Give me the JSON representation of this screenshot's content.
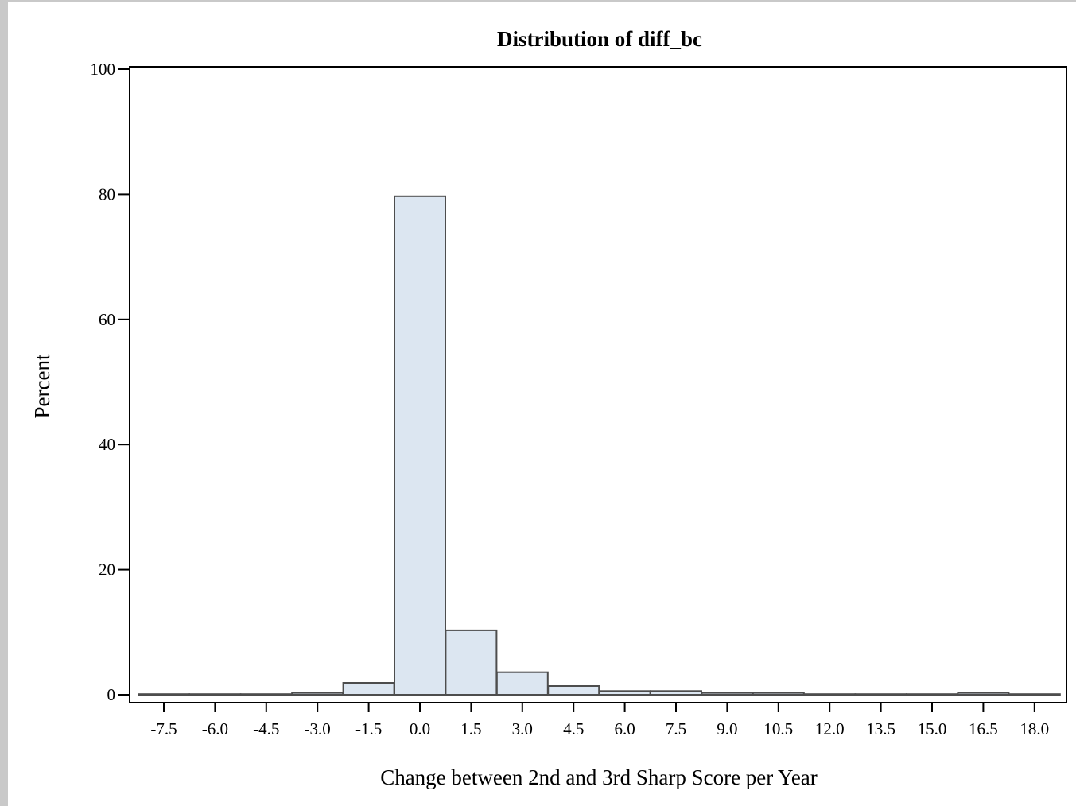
{
  "chart_data": {
    "type": "bar",
    "title": "Distribution of diff_bc",
    "xlabel": "Change between 2nd and 3rd Sharp Score per Year",
    "ylabel": "Percent",
    "ylim": [
      0,
      100
    ],
    "yticks": [
      "0",
      "20",
      "40",
      "60",
      "80",
      "100"
    ],
    "categories": [
      "-7.5",
      "-6.0",
      "-4.5",
      "-3.0",
      "-1.5",
      "0.0",
      "1.5",
      "3.0",
      "4.5",
      "6.0",
      "7.5",
      "9.0",
      "10.5",
      "12.0",
      "13.5",
      "15.0",
      "16.5",
      "18.0"
    ],
    "values": [
      0.1,
      0.1,
      0.1,
      0.3,
      1.9,
      79.7,
      10.3,
      3.6,
      1.4,
      0.6,
      0.6,
      0.3,
      0.3,
      0.1,
      0.1,
      0.1,
      0.3,
      0.1
    ],
    "grid": false,
    "colors": {
      "bar_fill": "#dce6f1",
      "bar_stroke": "#4d4d4d",
      "axis": "#000000"
    }
  }
}
